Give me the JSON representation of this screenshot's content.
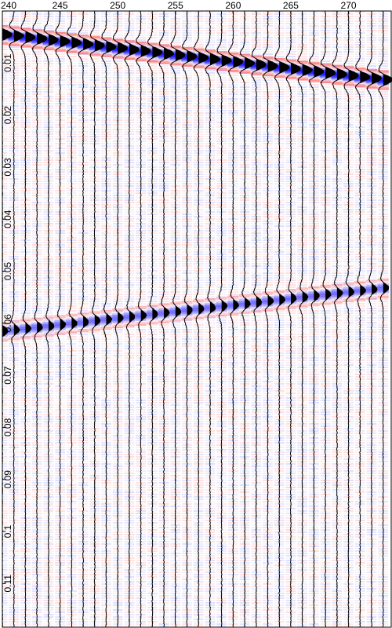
{
  "chart_data": {
    "type": "seismic-wiggle",
    "xlim": [
      240,
      273.7
    ],
    "ylim": [
      0,
      0.1184
    ],
    "x_ticks": [
      {
        "value": 240,
        "label": "240"
      },
      {
        "value": 245,
        "label": "245"
      },
      {
        "value": 250,
        "label": "250"
      },
      {
        "value": 255,
        "label": "255"
      },
      {
        "value": 260,
        "label": "260"
      },
      {
        "value": 265,
        "label": "265"
      },
      {
        "value": 270,
        "label": "270"
      }
    ],
    "y_ticks": [
      {
        "value": 0.01,
        "label": "0.01"
      },
      {
        "value": 0.02,
        "label": "0.02"
      },
      {
        "value": 0.03,
        "label": "0.03"
      },
      {
        "value": 0.04,
        "label": "0.04"
      },
      {
        "value": 0.05,
        "label": "0.05"
      },
      {
        "value": 0.06,
        "label": "0.06"
      },
      {
        "value": 0.07,
        "label": "0.07"
      },
      {
        "value": 0.08,
        "label": "0.08"
      },
      {
        "value": 0.09,
        "label": "0.09"
      },
      {
        "value": 0.1,
        "label": "0.1"
      },
      {
        "value": 0.11,
        "label": "0.11"
      }
    ],
    "traces": [
      240,
      241,
      242,
      243,
      244,
      245,
      246,
      247,
      248,
      249,
      250,
      251,
      252,
      253,
      254,
      255,
      256,
      257,
      258,
      259,
      260,
      261,
      262,
      263,
      264,
      265,
      266,
      267,
      268,
      269,
      270,
      271,
      272,
      273
    ],
    "events": [
      {
        "name": "",
        "time_start": 0.0045,
        "time_end": 0.0132,
        "amplitude": 1.0
      },
      {
        "name": "",
        "time_start": 0.0615,
        "time_end": 0.0532,
        "amplitude": 0.55
      }
    ],
    "colors": {
      "positive": "#0000ff",
      "negative": "#ff0000",
      "wiggle": "#000000",
      "fill": "#000000"
    },
    "grid": false,
    "legend": "none",
    "title": "",
    "xlabel": "",
    "ylabel": ""
  }
}
